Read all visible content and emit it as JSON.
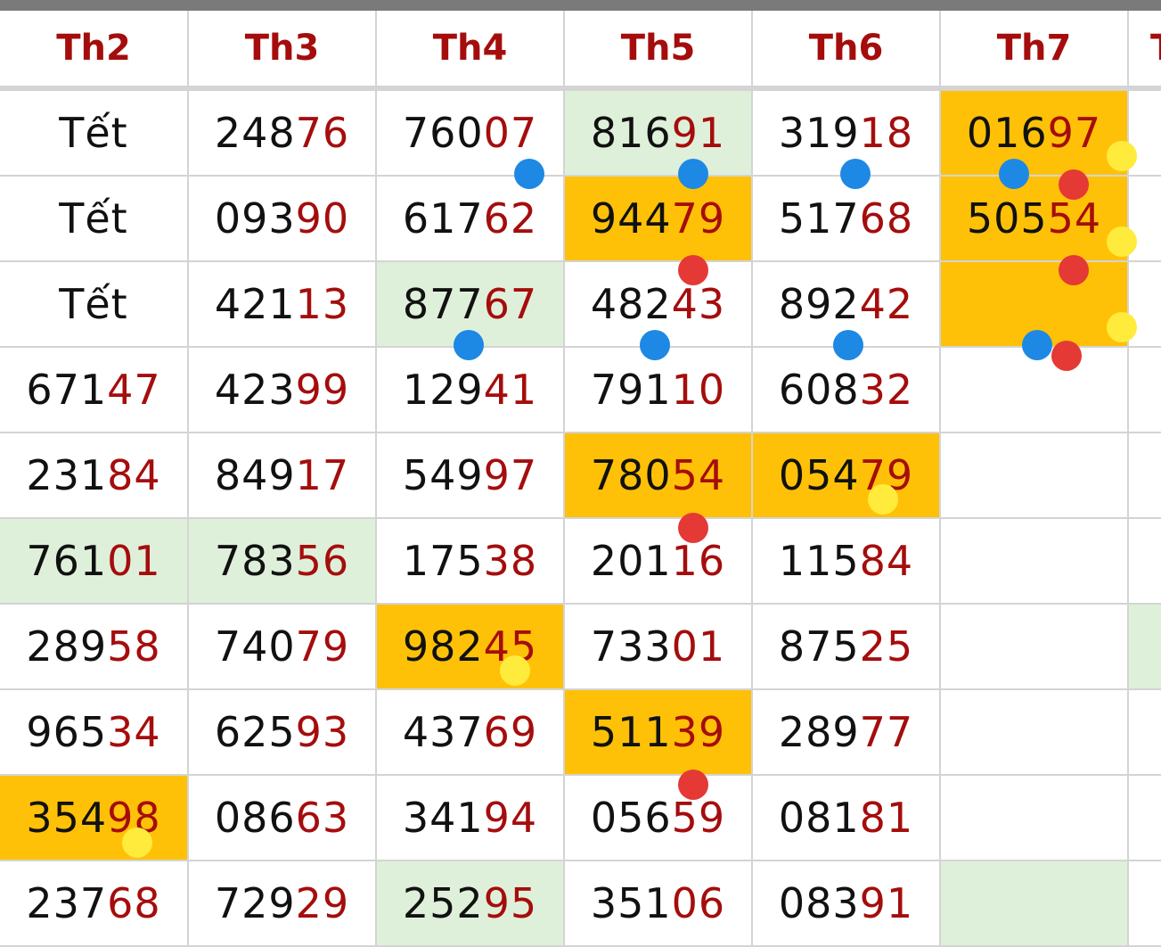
{
  "headers": [
    "Th2",
    "Th3",
    "Th4",
    "Th5",
    "Th6",
    "Th7",
    "T"
  ],
  "colors": {
    "header_text": "#a50d0d",
    "tail_digits": "#a50d0d",
    "green_highlight": "#dff0da",
    "orange_highlight": "#ffc107",
    "blue_dot": "#1e88e5",
    "red_dot": "#e53935",
    "yellow_dot": "#ffeb3b"
  },
  "rows": [
    [
      {
        "head": "Tết",
        "tail": "",
        "hl": ""
      },
      {
        "head": "248",
        "tail": "76",
        "hl": ""
      },
      {
        "head": "760",
        "tail": "07",
        "hl": ""
      },
      {
        "head": "816",
        "tail": "91",
        "hl": "green"
      },
      {
        "head": "319",
        "tail": "18",
        "hl": ""
      },
      {
        "head": "016",
        "tail": "97",
        "hl": "orange"
      },
      {
        "head": "",
        "tail": "",
        "hl": ""
      }
    ],
    [
      {
        "head": "Tết",
        "tail": "",
        "hl": ""
      },
      {
        "head": "093",
        "tail": "90",
        "hl": ""
      },
      {
        "head": "617",
        "tail": "62",
        "hl": ""
      },
      {
        "head": "944",
        "tail": "79",
        "hl": "orange"
      },
      {
        "head": "517",
        "tail": "68",
        "hl": ""
      },
      {
        "head": "505",
        "tail": "54",
        "hl": "orange"
      },
      {
        "head": "",
        "tail": "",
        "hl": ""
      }
    ],
    [
      {
        "head": "Tết",
        "tail": "",
        "hl": ""
      },
      {
        "head": "421",
        "tail": "13",
        "hl": ""
      },
      {
        "head": "877",
        "tail": "67",
        "hl": "green"
      },
      {
        "head": "482",
        "tail": "43",
        "hl": ""
      },
      {
        "head": "892",
        "tail": "42",
        "hl": ""
      },
      {
        "head": "",
        "tail": "",
        "hl": "orange"
      },
      {
        "head": "",
        "tail": "",
        "hl": ""
      }
    ],
    [
      {
        "head": "671",
        "tail": "47",
        "hl": ""
      },
      {
        "head": "423",
        "tail": "99",
        "hl": ""
      },
      {
        "head": "129",
        "tail": "41",
        "hl": ""
      },
      {
        "head": "791",
        "tail": "10",
        "hl": ""
      },
      {
        "head": "608",
        "tail": "32",
        "hl": ""
      },
      {
        "head": "",
        "tail": "",
        "hl": ""
      },
      {
        "head": "",
        "tail": "",
        "hl": ""
      }
    ],
    [
      {
        "head": "231",
        "tail": "84",
        "hl": ""
      },
      {
        "head": "849",
        "tail": "17",
        "hl": ""
      },
      {
        "head": "549",
        "tail": "97",
        "hl": ""
      },
      {
        "head": "780",
        "tail": "54",
        "hl": "orange"
      },
      {
        "head": "054",
        "tail": "79",
        "hl": "orange"
      },
      {
        "head": "",
        "tail": "",
        "hl": ""
      },
      {
        "head": "",
        "tail": "",
        "hl": ""
      }
    ],
    [
      {
        "head": "761",
        "tail": "01",
        "hl": "green"
      },
      {
        "head": "783",
        "tail": "56",
        "hl": "green"
      },
      {
        "head": "175",
        "tail": "38",
        "hl": ""
      },
      {
        "head": "201",
        "tail": "16",
        "hl": ""
      },
      {
        "head": "115",
        "tail": "84",
        "hl": ""
      },
      {
        "head": "",
        "tail": "",
        "hl": ""
      },
      {
        "head": "",
        "tail": "",
        "hl": ""
      }
    ],
    [
      {
        "head": "289",
        "tail": "58",
        "hl": ""
      },
      {
        "head": "740",
        "tail": "79",
        "hl": ""
      },
      {
        "head": "982",
        "tail": "45",
        "hl": "orange"
      },
      {
        "head": "733",
        "tail": "01",
        "hl": ""
      },
      {
        "head": "875",
        "tail": "25",
        "hl": ""
      },
      {
        "head": "",
        "tail": "",
        "hl": ""
      },
      {
        "head": "",
        "tail": "",
        "hl": "green"
      }
    ],
    [
      {
        "head": "965",
        "tail": "34",
        "hl": ""
      },
      {
        "head": "625",
        "tail": "93",
        "hl": ""
      },
      {
        "head": "437",
        "tail": "69",
        "hl": ""
      },
      {
        "head": "511",
        "tail": "39",
        "hl": "orange"
      },
      {
        "head": "289",
        "tail": "77",
        "hl": ""
      },
      {
        "head": "",
        "tail": "",
        "hl": ""
      },
      {
        "head": "",
        "tail": "",
        "hl": ""
      }
    ],
    [
      {
        "head": "354",
        "tail": "98",
        "hl": "orange"
      },
      {
        "head": "086",
        "tail": "63",
        "hl": ""
      },
      {
        "head": "341",
        "tail": "94",
        "hl": ""
      },
      {
        "head": "056",
        "tail": "59",
        "hl": ""
      },
      {
        "head": "081",
        "tail": "81",
        "hl": ""
      },
      {
        "head": "",
        "tail": "",
        "hl": ""
      },
      {
        "head": "",
        "tail": "",
        "hl": ""
      }
    ],
    [
      {
        "head": "237",
        "tail": "68",
        "hl": ""
      },
      {
        "head": "729",
        "tail": "29",
        "hl": ""
      },
      {
        "head": "252",
        "tail": "95",
        "hl": "green"
      },
      {
        "head": "351",
        "tail": "06",
        "hl": ""
      },
      {
        "head": "083",
        "tail": "91",
        "hl": ""
      },
      {
        "head": "",
        "tail": "",
        "hl": "green"
      },
      {
        "head": "",
        "tail": "",
        "hl": ""
      }
    ]
  ],
  "markers": [
    {
      "row": 0,
      "col": 2,
      "color": "blue"
    },
    {
      "row": 0,
      "col": 3,
      "color": "blue"
    },
    {
      "row": 0,
      "col": 4,
      "color": "blue"
    },
    {
      "row": 0,
      "col": 5,
      "color": "blue"
    },
    {
      "row": 0,
      "col": 5,
      "color": "red"
    },
    {
      "row": 0,
      "col": 5,
      "color": "yellow"
    },
    {
      "row": 1,
      "col": 3,
      "color": "red"
    },
    {
      "row": 1,
      "col": 5,
      "color": "red"
    },
    {
      "row": 1,
      "col": 5,
      "color": "yellow"
    },
    {
      "row": 2,
      "col": 2,
      "color": "blue"
    },
    {
      "row": 2,
      "col": 3,
      "color": "blue"
    },
    {
      "row": 2,
      "col": 4,
      "color": "blue"
    },
    {
      "row": 2,
      "col": 5,
      "color": "blue"
    },
    {
      "row": 2,
      "col": 5,
      "color": "red"
    },
    {
      "row": 2,
      "col": 5,
      "color": "yellow"
    },
    {
      "row": 4,
      "col": 3,
      "color": "red"
    },
    {
      "row": 4,
      "col": 4,
      "color": "yellow"
    },
    {
      "row": 6,
      "col": 2,
      "color": "yellow"
    },
    {
      "row": 7,
      "col": 3,
      "color": "red"
    },
    {
      "row": 8,
      "col": 0,
      "color": "yellow"
    }
  ]
}
